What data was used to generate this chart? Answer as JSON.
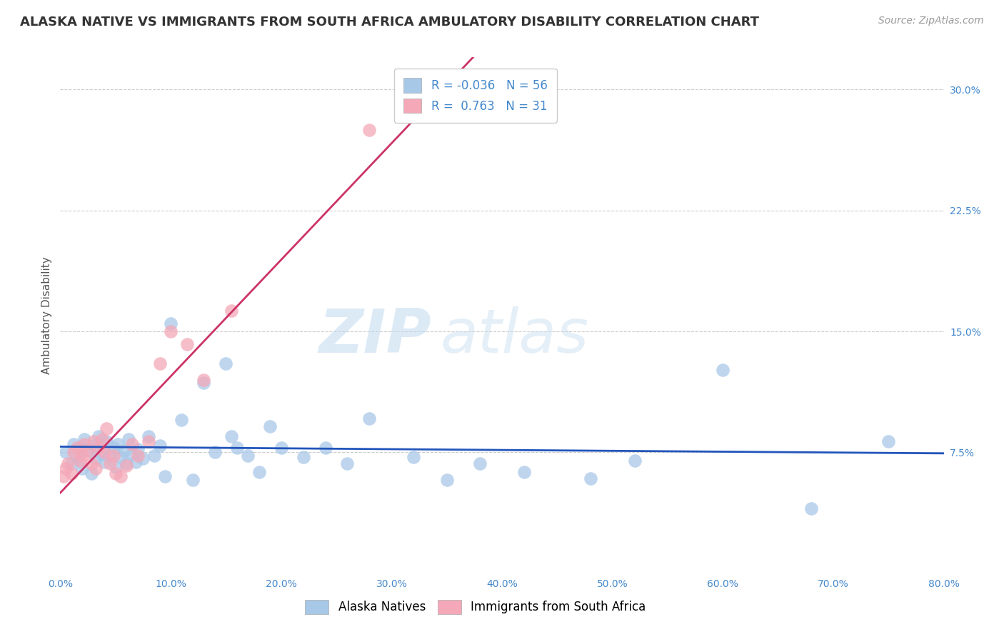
{
  "title": "ALASKA NATIVE VS IMMIGRANTS FROM SOUTH AFRICA AMBULATORY DISABILITY CORRELATION CHART",
  "source": "Source: ZipAtlas.com",
  "ylabel": "Ambulatory Disability",
  "legend_label_blue": "Alaska Natives",
  "legend_label_pink": "Immigrants from South Africa",
  "R_blue": -0.036,
  "N_blue": 56,
  "R_pink": 0.763,
  "N_pink": 31,
  "blue_color": "#a8c8e8",
  "pink_color": "#f4a8b8",
  "blue_line_color": "#2255bb",
  "pink_line_color": "#cc3366",
  "xlim": [
    0.0,
    0.8
  ],
  "ylim": [
    0.0,
    0.32
  ],
  "x_ticks": [
    0.0,
    0.1,
    0.2,
    0.3,
    0.4,
    0.5,
    0.6,
    0.7,
    0.8
  ],
  "x_tick_labels": [
    "0.0%",
    "10.0%",
    "20.0%",
    "30.0%",
    "40.0%",
    "50.0%",
    "60.0%",
    "70.0%",
    "80.0%"
  ],
  "y_ticks": [
    0.075,
    0.15,
    0.225,
    0.3
  ],
  "y_tick_labels": [
    "7.5%",
    "15.0%",
    "22.5%",
    "30.0%"
  ],
  "grid_color": "#cccccc",
  "background_color": "#ffffff",
  "blue_x": [
    0.005,
    0.01,
    0.012,
    0.015,
    0.018,
    0.02,
    0.022,
    0.025,
    0.028,
    0.03,
    0.032,
    0.035,
    0.038,
    0.04,
    0.042,
    0.045,
    0.048,
    0.05,
    0.052,
    0.055,
    0.058,
    0.06,
    0.062,
    0.065,
    0.068,
    0.07,
    0.075,
    0.08,
    0.085,
    0.09,
    0.095,
    0.1,
    0.11,
    0.12,
    0.13,
    0.14,
    0.15,
    0.155,
    0.16,
    0.17,
    0.18,
    0.19,
    0.2,
    0.22,
    0.24,
    0.26,
    0.28,
    0.32,
    0.35,
    0.38,
    0.42,
    0.48,
    0.52,
    0.6,
    0.68,
    0.75
  ],
  "blue_y": [
    0.075,
    0.068,
    0.08,
    0.072,
    0.078,
    0.065,
    0.083,
    0.076,
    0.062,
    0.079,
    0.071,
    0.085,
    0.074,
    0.069,
    0.082,
    0.073,
    0.078,
    0.066,
    0.08,
    0.072,
    0.076,
    0.068,
    0.083,
    0.074,
    0.069,
    0.077,
    0.071,
    0.085,
    0.073,
    0.079,
    0.06,
    0.155,
    0.095,
    0.058,
    0.118,
    0.075,
    0.13,
    0.085,
    0.078,
    0.073,
    0.063,
    0.091,
    0.078,
    0.072,
    0.078,
    0.068,
    0.096,
    0.072,
    0.058,
    0.068,
    0.063,
    0.059,
    0.07,
    0.126,
    0.04,
    0.082
  ],
  "pink_x": [
    0.003,
    0.005,
    0.007,
    0.01,
    0.012,
    0.015,
    0.018,
    0.02,
    0.022,
    0.025,
    0.028,
    0.03,
    0.032,
    0.035,
    0.038,
    0.04,
    0.042,
    0.045,
    0.048,
    0.05,
    0.055,
    0.06,
    0.065,
    0.07,
    0.08,
    0.09,
    0.1,
    0.115,
    0.13,
    0.155,
    0.28
  ],
  "pink_y": [
    0.06,
    0.065,
    0.068,
    0.062,
    0.075,
    0.078,
    0.07,
    0.073,
    0.08,
    0.076,
    0.068,
    0.082,
    0.065,
    0.078,
    0.083,
    0.075,
    0.09,
    0.068,
    0.073,
    0.062,
    0.06,
    0.067,
    0.08,
    0.073,
    0.082,
    0.13,
    0.15,
    0.142,
    0.12,
    0.163,
    0.275
  ],
  "watermark_zip": "ZIP",
  "watermark_atlas": "atlas",
  "title_fontsize": 13,
  "axis_label_fontsize": 11,
  "tick_fontsize": 10,
  "legend_fontsize": 12,
  "source_fontsize": 10
}
